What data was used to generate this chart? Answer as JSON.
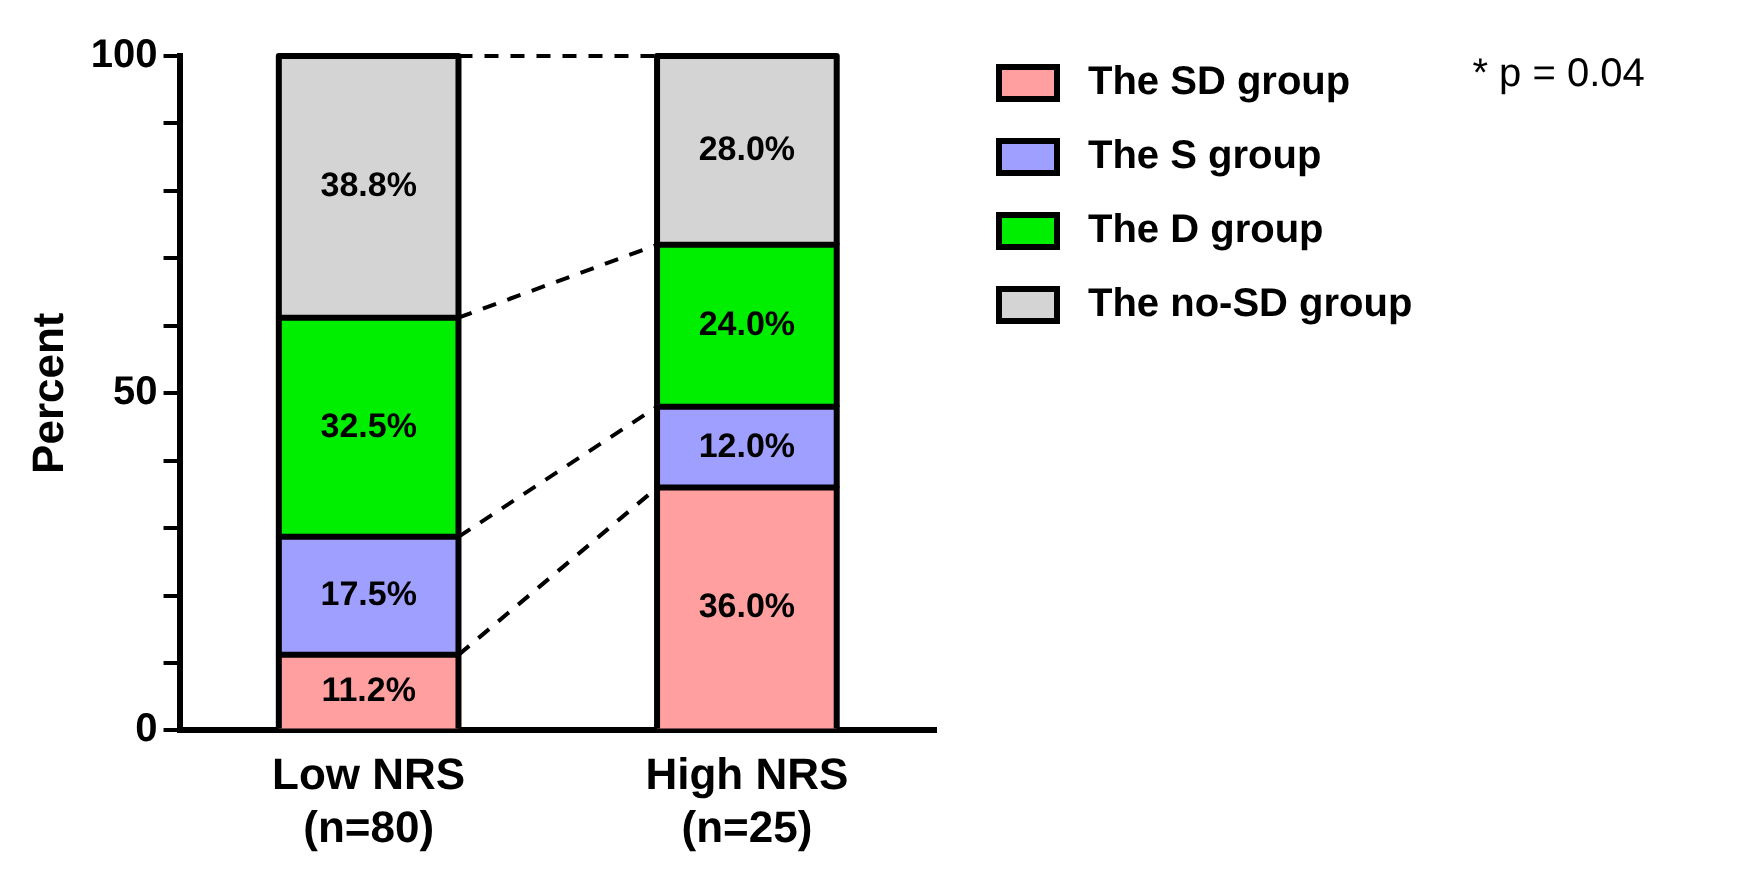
{
  "chart_data": {
    "type": "bar",
    "stacked": true,
    "ylabel": "Percent",
    "categories": [
      "Low NRS\n(n=80)",
      "High NRS\n(n=25)"
    ],
    "series": [
      {
        "name": "The SD group",
        "color": "#ff9f9f",
        "values": [
          11.2,
          36.0
        ],
        "value_labels": [
          "11.2%",
          "36.0%"
        ]
      },
      {
        "name": "The S group",
        "color": "#9f9fff",
        "values": [
          17.5,
          12.0
        ],
        "value_labels": [
          "17.5%",
          "12.0%"
        ]
      },
      {
        "name": "The D group",
        "color": "#00ee00",
        "values": [
          32.5,
          24.0
        ],
        "value_labels": [
          "32.5%",
          "24.0%"
        ]
      },
      {
        "name": "The no-SD group",
        "color": "#d4d4d4",
        "values": [
          38.8,
          28.0
        ],
        "value_labels": [
          "38.8%",
          "28.0%"
        ]
      }
    ],
    "ylim": [
      0,
      100
    ],
    "yticks": [
      0,
      {
        "value": 10,
        "label": null
      },
      {
        "value": 20,
        "label": null
      },
      {
        "value": 30,
        "label": null
      },
      {
        "value": 40,
        "label": null
      },
      50,
      {
        "value": 60,
        "label": null
      },
      {
        "value": 70,
        "label": null
      },
      {
        "value": 80,
        "label": null
      },
      {
        "value": 90,
        "label": null
      },
      100
    ],
    "grid": false,
    "legend": "top right",
    "annotations": [
      "* p = 0.04"
    ]
  }
}
